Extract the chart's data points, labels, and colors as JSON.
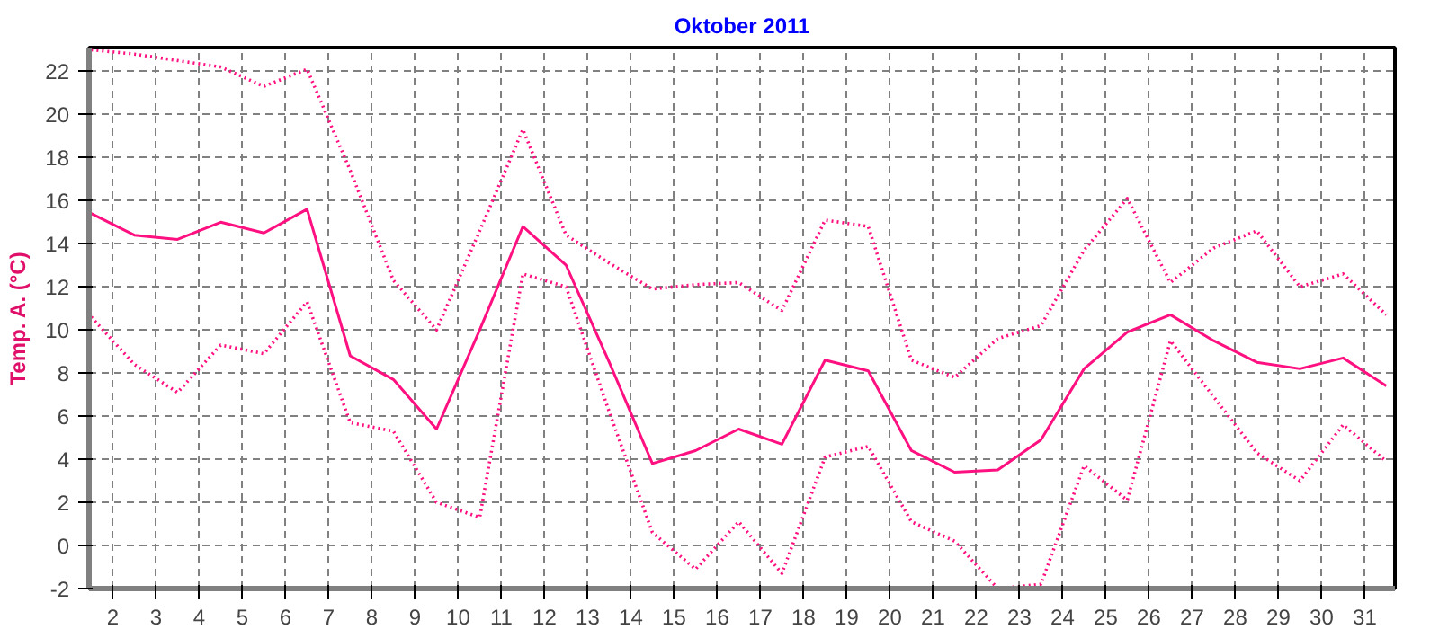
{
  "chart_data": {
    "type": "line",
    "title": "Oktober 2011",
    "ylabel": "Temp. A. (°C)",
    "x": [
      1.5,
      2.5,
      3.5,
      4.5,
      5.5,
      6.5,
      7.5,
      8.5,
      9.5,
      10.5,
      11.5,
      12.5,
      13.5,
      14.5,
      15.5,
      16.5,
      17.5,
      18.5,
      19.5,
      20.5,
      21.5,
      22.5,
      23.5,
      24.5,
      25.5,
      26.5,
      27.5,
      28.5,
      29.5,
      30.5,
      31.5
    ],
    "series": [
      {
        "color": "#ff1080",
        "line_style": "dotted",
        "values": [
          23.0,
          22.8,
          22.5,
          22.2,
          21.3,
          22.1,
          17.4,
          12.3,
          10.0,
          14.6,
          19.3,
          14.4,
          13.1,
          11.9,
          12.1,
          12.2,
          10.9,
          15.1,
          14.8,
          8.6,
          7.8,
          9.6,
          10.2,
          13.7,
          16.1,
          12.2,
          13.8,
          14.6,
          12.0,
          12.6,
          10.7
        ]
      },
      {
        "color": "#ff1080",
        "line_style": "solid",
        "values": [
          15.4,
          14.4,
          14.2,
          15.0,
          14.5,
          15.6,
          8.8,
          7.7,
          5.4,
          10.0,
          14.8,
          13.0,
          8.5,
          3.8,
          4.4,
          5.4,
          4.7,
          8.6,
          8.1,
          4.4,
          3.4,
          3.5,
          4.9,
          8.2,
          9.9,
          10.7,
          9.5,
          8.5,
          8.2,
          8.7,
          7.4
        ]
      },
      {
        "color": "#ff1080",
        "line_style": "dotted",
        "values": [
          10.6,
          8.4,
          7.1,
          9.3,
          8.9,
          11.3,
          5.7,
          5.3,
          2.0,
          1.3,
          12.6,
          12.0,
          6.2,
          0.6,
          -1.1,
          1.1,
          -1.3,
          4.1,
          4.6,
          1.1,
          0.2,
          -2.0,
          -1.8,
          3.7,
          2.1,
          9.5,
          6.9,
          4.3,
          3.0,
          5.6,
          3.9
        ]
      }
    ],
    "xlim": [
      1.45,
      31.7
    ],
    "xticks": [
      2,
      3,
      4,
      5,
      6,
      7,
      8,
      9,
      10,
      11,
      12,
      13,
      14,
      15,
      16,
      17,
      18,
      19,
      20,
      21,
      22,
      23,
      24,
      25,
      26,
      27,
      28,
      29,
      30,
      31
    ],
    "ylim": [
      -2,
      23.1
    ],
    "yticks": [
      -2,
      0,
      2,
      4,
      6,
      8,
      10,
      12,
      14,
      16,
      18,
      20,
      22
    ],
    "grid": true
  }
}
